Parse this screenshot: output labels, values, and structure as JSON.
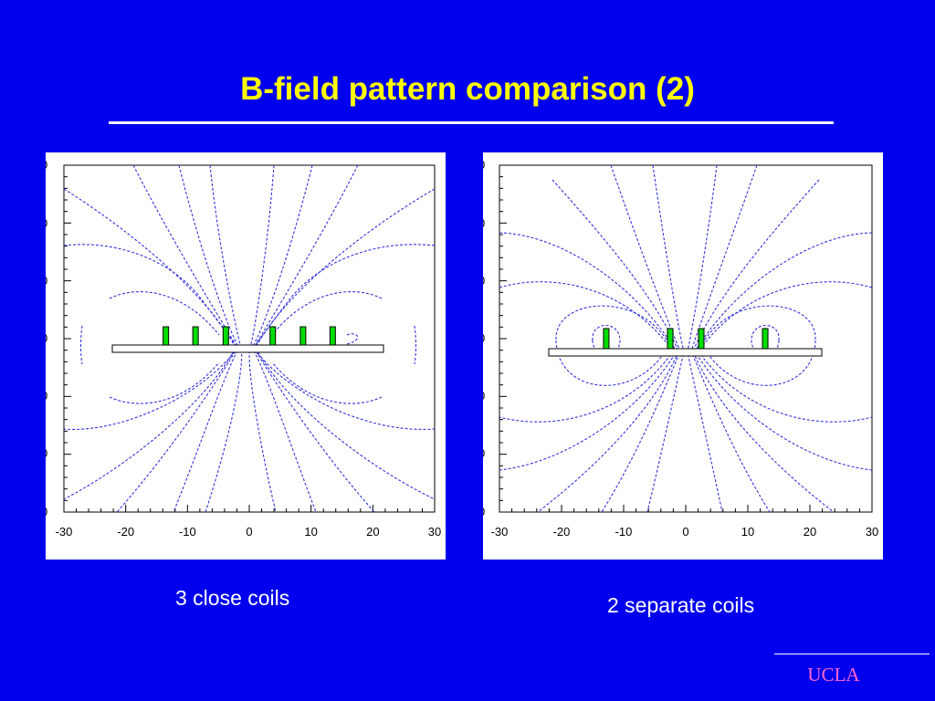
{
  "slide": {
    "title": "B-field pattern comparison (2)",
    "footer_logo": "UCLA"
  },
  "colors": {
    "background": "#0000ee",
    "title": "#ffff00",
    "field_lines": "#3333dd",
    "coil": "#00dd00",
    "footer_logo": "#ff66cc"
  },
  "panels": [
    {
      "caption": "3 close coils",
      "x_ticks": [
        "-30",
        "-20",
        "-10",
        "0",
        "10",
        "20",
        "30"
      ],
      "coil_x": [
        -13.5,
        -8.7,
        -3.8,
        3.8,
        8.7,
        13.5
      ]
    },
    {
      "caption": "2 separate coils",
      "x_ticks": [
        "-30",
        "-20",
        "-10",
        "0",
        "10",
        "20",
        "30"
      ],
      "coil_x": [
        -12.8,
        -2.5,
        2.5,
        12.8
      ]
    }
  ]
}
